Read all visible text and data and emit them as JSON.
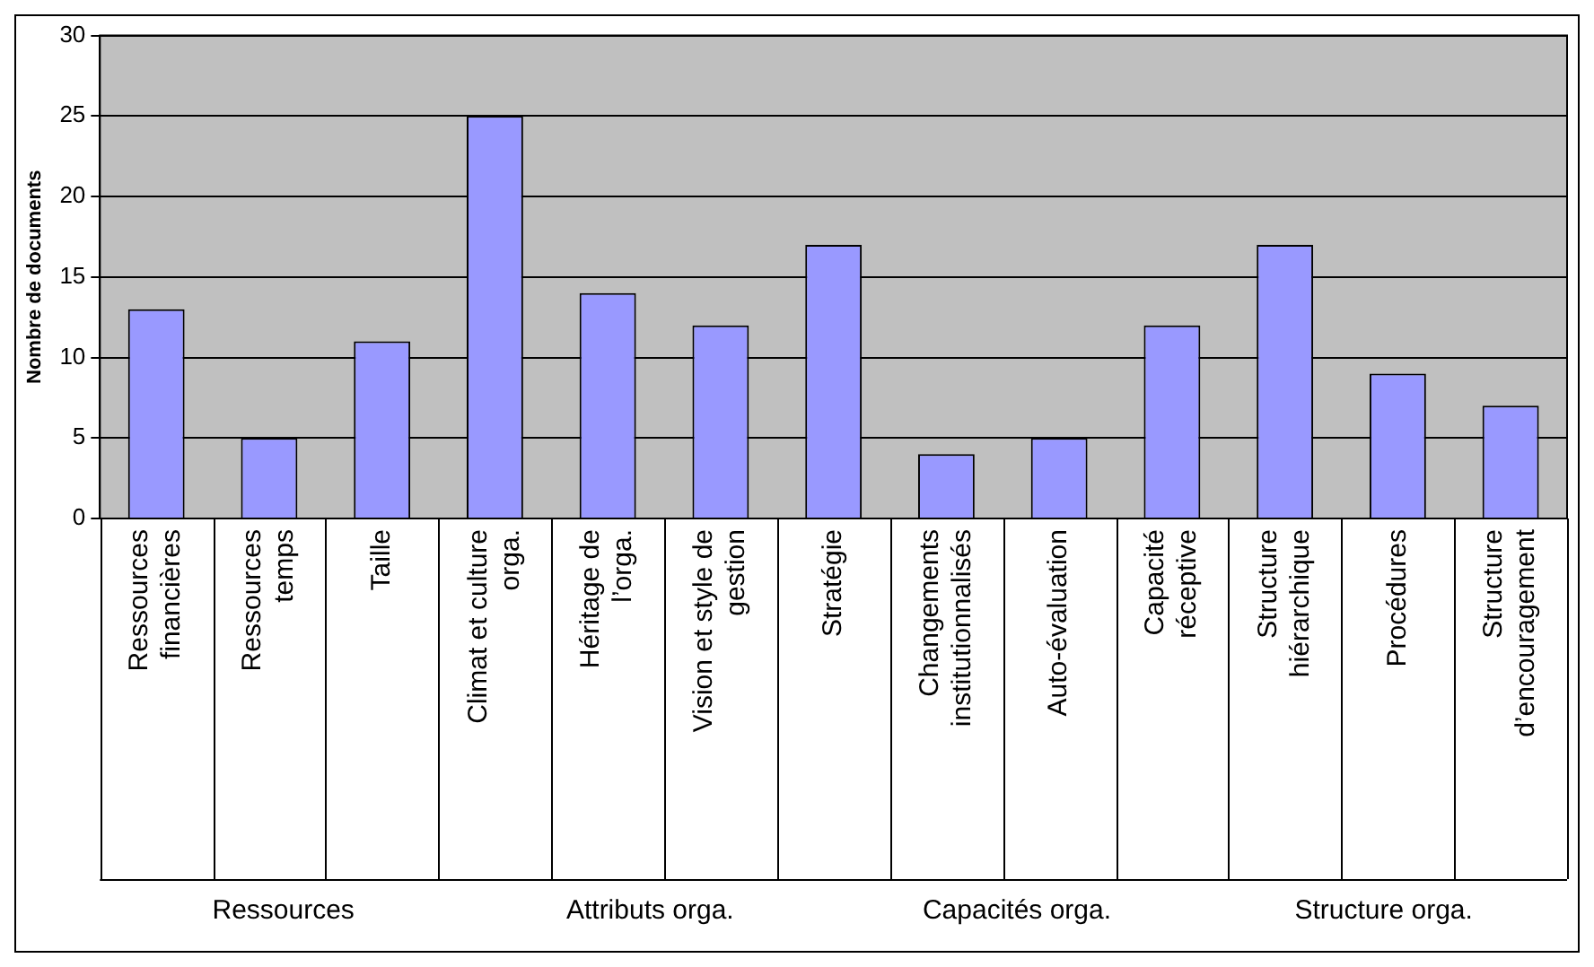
{
  "chart_data": {
    "type": "bar",
    "ylabel": "Nombre de documents",
    "categories": [
      "Ressources financières",
      "Ressources temps",
      "Taille",
      "Climat et culture orga.",
      "Héritage de l’orga.",
      "Vision et style de gestion",
      "Stratégie",
      "Changements institutionnalisés",
      "Auto-évaluation",
      "Capacité réceptive",
      "Structure hiérarchique",
      "Procédures",
      "Structure d’encouragement"
    ],
    "values": [
      13,
      5,
      11,
      25,
      14,
      12,
      17,
      4,
      5,
      12,
      17,
      9,
      7
    ],
    "color": "#9999ff",
    "ylim": [
      0,
      30
    ],
    "yticks": [
      0,
      5,
      10,
      15,
      20,
      25,
      30
    ],
    "grid": "y",
    "legend": false,
    "annotations": [
      "Ressources",
      "Attributs orga.",
      "Capacités orga.",
      "Structure orga."
    ]
  }
}
